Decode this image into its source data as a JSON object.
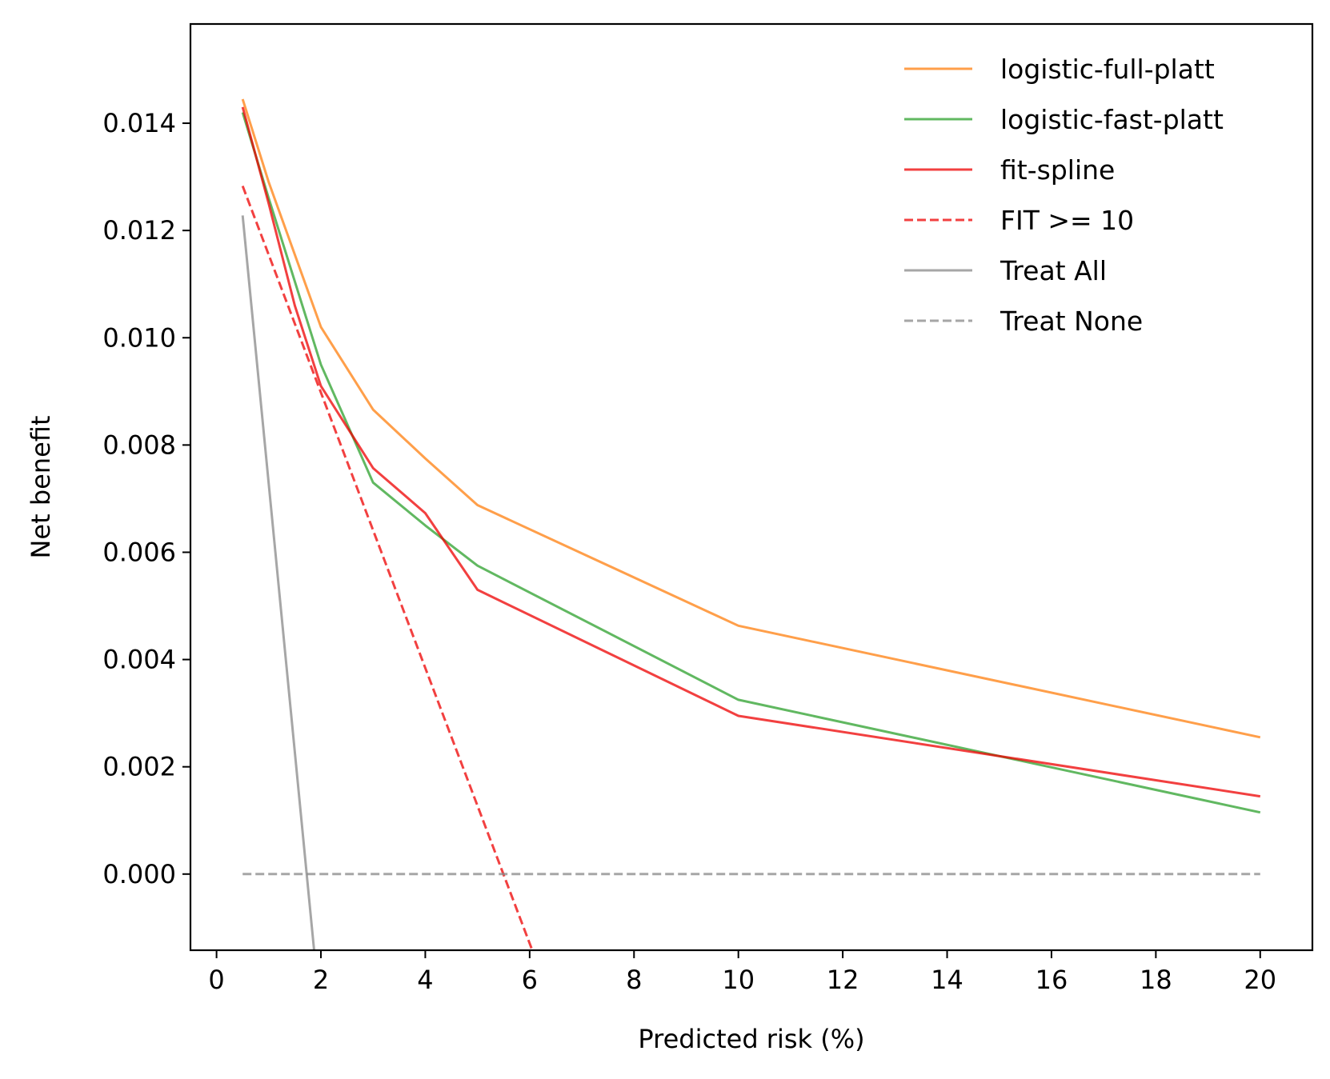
{
  "chart_data": {
    "type": "line",
    "title": "",
    "xlabel": "Predicted risk (%)",
    "ylabel": "Net benefit",
    "xlim": [
      -0.5,
      21
    ],
    "ylim": [
      -0.00142,
      0.01585
    ],
    "xticks": [
      0,
      2,
      4,
      6,
      8,
      10,
      12,
      14,
      16,
      18,
      20
    ],
    "yticks": [
      0.0,
      0.002,
      0.004,
      0.006,
      0.008,
      0.01,
      0.012,
      0.014
    ],
    "ytick_labels": [
      "0.000",
      "0.002",
      "0.004",
      "0.006",
      "0.008",
      "0.010",
      "0.012",
      "0.014"
    ],
    "grid": false,
    "legend_position": "top-right",
    "series": [
      {
        "name": "logistic-full-platt",
        "color": "#ff7f0e",
        "dash": "solid",
        "x": [
          0.5,
          1,
          2,
          3,
          4,
          5,
          10,
          20
        ],
        "y": [
          0.01445,
          0.0129,
          0.0102,
          0.00866,
          0.00775,
          0.00688,
          0.00463,
          0.00255
        ]
      },
      {
        "name": "logistic-fast-platt",
        "color": "#2ca02c",
        "dash": "solid",
        "x": [
          0.5,
          1,
          2,
          3,
          4,
          5,
          10,
          20
        ],
        "y": [
          0.0142,
          0.0126,
          0.0095,
          0.0073,
          0.0065,
          0.00575,
          0.00325,
          0.00115
        ]
      },
      {
        "name": "fit-spline",
        "color": "#ee0000",
        "dash": "solid",
        "x": [
          0.5,
          1,
          1.5,
          2,
          3,
          4,
          5,
          10,
          20
        ],
        "y": [
          0.0143,
          0.0125,
          0.0106,
          0.0091,
          0.00757,
          0.00673,
          0.0053,
          0.00295,
          0.00145
        ]
      },
      {
        "name": "FIT >= 10",
        "color": "#ee0000",
        "dash": "dashed",
        "x": [
          0.5,
          6.05
        ],
        "y": [
          0.01283,
          -0.00142
        ]
      },
      {
        "name": "Treat All",
        "color": "#888888",
        "dash": "solid",
        "x": [
          0.5,
          1.87
        ],
        "y": [
          0.01228,
          -0.00142
        ]
      },
      {
        "name": "Treat None",
        "color": "#888888",
        "dash": "dashed",
        "x": [
          0.5,
          20
        ],
        "y": [
          0.0,
          0.0
        ]
      }
    ]
  }
}
